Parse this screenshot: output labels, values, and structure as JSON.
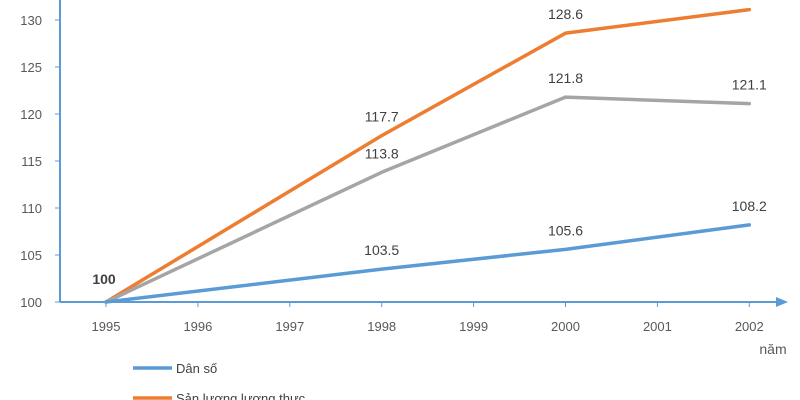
{
  "chart_data": {
    "type": "line",
    "title": "",
    "xlabel": "năm",
    "ylabel": "",
    "categories": [
      "1995",
      "1996",
      "1997",
      "1998",
      "1999",
      "2000",
      "2001",
      "2002"
    ],
    "ylim": [
      100,
      132
    ],
    "yticks": [
      "100",
      "105",
      "110",
      "115",
      "120",
      "125",
      "130"
    ],
    "grid": false,
    "origin_label": "100",
    "series": [
      {
        "name": "Sản lượng lương thực",
        "color": "#ED7D31",
        "x": [
          "1995",
          "1998",
          "2000",
          "2002"
        ],
        "values": [
          100,
          117.7,
          128.6,
          131.1
        ],
        "labels": [
          "",
          "117.7",
          "128.6",
          ""
        ]
      },
      {
        "name": "",
        "color": "#A5A5A5",
        "x": [
          "1995",
          "1998",
          "2000",
          "2002"
        ],
        "values": [
          100,
          113.8,
          121.8,
          121.1
        ],
        "labels": [
          "",
          "113.8",
          "121.8",
          "121.1"
        ]
      },
      {
        "name": "Dân số",
        "color": "#5B9BD5",
        "x": [
          "1995",
          "1998",
          "2000",
          "2002"
        ],
        "values": [
          100,
          103.5,
          105.6,
          108.2
        ],
        "labels": [
          "",
          "103.5",
          "105.6",
          "108.2"
        ]
      }
    ],
    "legend": [
      {
        "name": "Dân số",
        "color": "#5B9BD5"
      },
      {
        "name": "Sản lượng lương thực",
        "color": "#ED7D31"
      }
    ]
  }
}
